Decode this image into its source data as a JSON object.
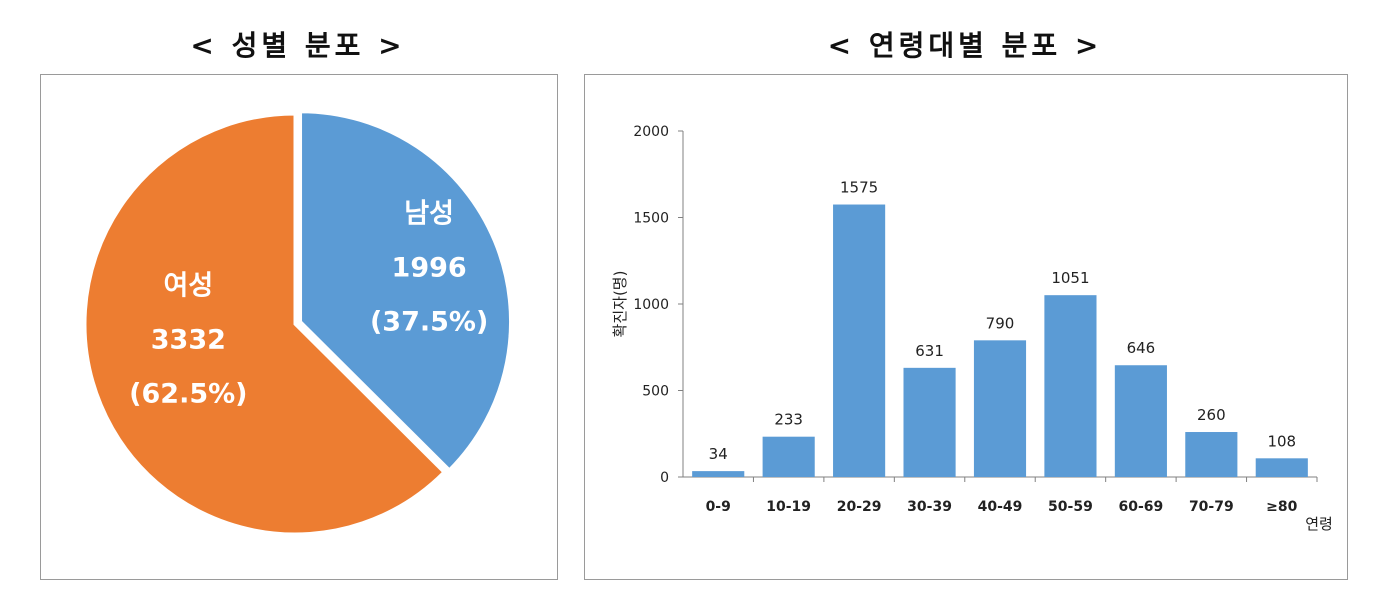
{
  "titles": {
    "left": "< 성별 분포 >",
    "right": "< 연령대별 분포 >"
  },
  "colors": {
    "female": "#ED7D31",
    "male": "#5B9BD5",
    "bar": "#5B9BD5"
  },
  "chart_data": [
    {
      "type": "pie",
      "title": "< 성별 분포 >",
      "slices": [
        {
          "label": "남성",
          "value": 1996,
          "percent_label": "(37.5%)",
          "color": "#5B9BD5"
        },
        {
          "label": "여성",
          "value": 3332,
          "percent_label": "(62.5%)",
          "color": "#ED7D31"
        }
      ]
    },
    {
      "type": "bar",
      "title": "< 연령대별 분포 >",
      "xlabel": "연령",
      "ylabel": "확진자(명)",
      "ylim": [
        0,
        2000
      ],
      "yticks": [
        0,
        500,
        1000,
        1500,
        2000
      ],
      "categories": [
        "0-9",
        "10-19",
        "20-29",
        "30-39",
        "40-49",
        "50-59",
        "60-69",
        "70-79",
        "≥80"
      ],
      "values": [
        34,
        233,
        1575,
        631,
        790,
        1051,
        646,
        260,
        108
      ],
      "grid": false
    }
  ]
}
